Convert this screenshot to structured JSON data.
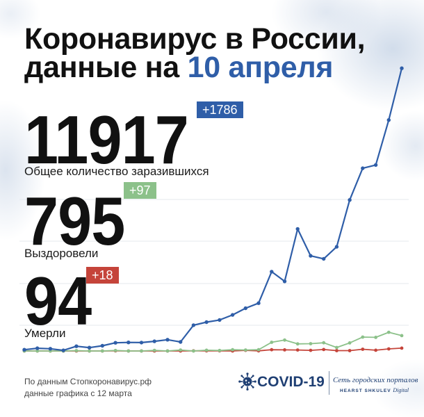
{
  "title": {
    "line1": "Коронавирус в России,",
    "line2_prefix": "данные на ",
    "line2_date": "10 апреля"
  },
  "colors": {
    "accent": "#2f5ea8",
    "text": "#111111",
    "cases": "#2f5ea8",
    "recovered": "#8cc18a",
    "deaths": "#c5443a"
  },
  "stats": {
    "cases": {
      "value": "11917",
      "delta": "+1786",
      "label": "Общее количество заразившихся"
    },
    "recovered": {
      "value": "795",
      "delta": "+97",
      "label": "Выздоровели"
    },
    "deaths": {
      "value": "94",
      "delta": "+18",
      "label": "Умерли"
    }
  },
  "footer": {
    "source": "По данным Стопкоронавирус.рф",
    "note": "данные графика с 12 марта"
  },
  "logo": {
    "icon": "virus-icon",
    "covid": "COVID-19",
    "network": "Сеть городских порталов",
    "brand": "HEARST SHKULEV",
    "brand_suffix": "Digital"
  },
  "chart_data": {
    "type": "line",
    "grid": true,
    "ylim": [
      0,
      1800
    ],
    "series": [
      {
        "color": "#2f5ea8",
        "values": [
          8,
          17,
          14,
          4,
          30,
          21,
          33,
          52,
          54,
          53,
          61,
          71,
          57,
          163,
          182,
          196,
          228,
          270,
          302,
          501,
          440,
          771,
          601,
          582,
          658,
          954,
          1154,
          1175,
          1459,
          1786
        ]
      },
      {
        "color": "#8cc18a",
        "values": [
          0,
          0,
          0,
          0,
          2,
          0,
          0,
          3,
          0,
          0,
          4,
          0,
          6,
          0,
          5,
          3,
          8,
          6,
          8,
          55,
          69,
          45,
          46,
          52,
          22,
          51,
          88,
          86,
          118,
          97
        ]
      },
      {
        "color": "#c5443a",
        "values": [
          0,
          0,
          0,
          0,
          0,
          0,
          0,
          1,
          0,
          0,
          0,
          0,
          0,
          1,
          1,
          1,
          0,
          4,
          1,
          8,
          7,
          6,
          4,
          9,
          2,
          2,
          11,
          5,
          13,
          18
        ]
      }
    ]
  }
}
